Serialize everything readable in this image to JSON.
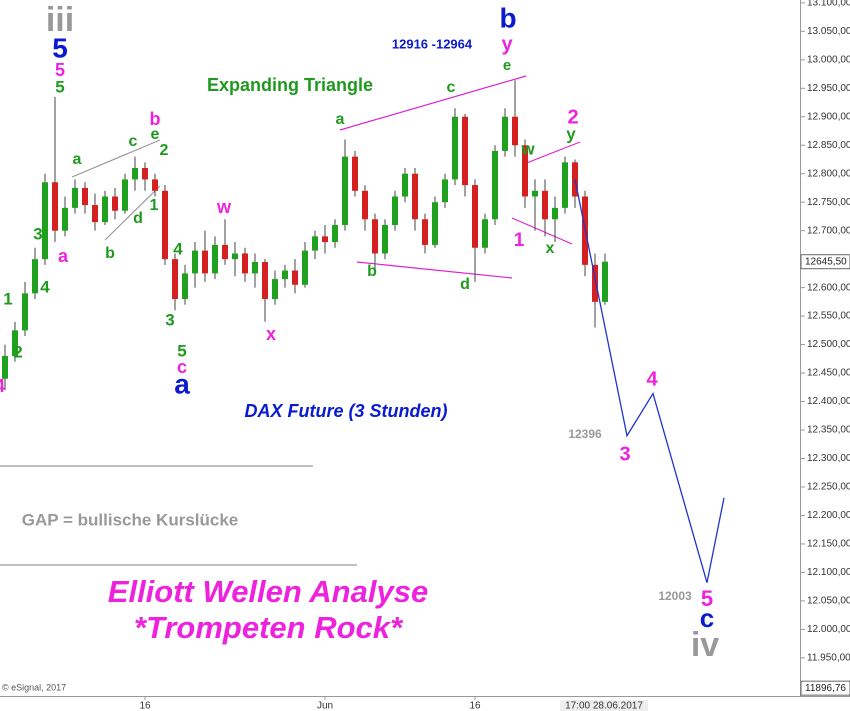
{
  "chart_data": {
    "type": "candlestick",
    "categories": [
      null,
      null,
      null,
      null,
      null,
      null,
      null,
      null,
      null,
      null,
      null,
      null,
      null,
      null,
      "16",
      null,
      null,
      null,
      null,
      null,
      null,
      null,
      null,
      null,
      null,
      null,
      null,
      null,
      null,
      null,
      null,
      null,
      "Jun",
      null,
      null,
      null,
      null,
      null,
      null,
      null,
      null,
      null,
      null,
      null,
      null,
      null,
      null,
      "16",
      null,
      null,
      null,
      null,
      null,
      null,
      null,
      null,
      null,
      null,
      null,
      null,
      null
    ],
    "open": [
      12440,
      12480,
      12525,
      12590,
      12650,
      12785,
      12700,
      12740,
      12775,
      12745,
      12715,
      12760,
      12735,
      12790,
      12810,
      12790,
      12770,
      12650,
      12580,
      12625,
      12665,
      12625,
      12675,
      12650,
      12660,
      12625,
      12645,
      12580,
      12615,
      12630,
      12605,
      12665,
      12690,
      12680,
      12710,
      12830,
      12770,
      12720,
      12660,
      12710,
      12760,
      12800,
      12720,
      12675,
      12750,
      12790,
      12900,
      12780,
      12670,
      12720,
      12840,
      12900,
      12850,
      12760,
      12770,
      12720,
      12740,
      12820,
      12760,
      12640,
      12575
    ],
    "high": [
      12500,
      12540,
      12610,
      12670,
      12800,
      12935,
      12760,
      12790,
      12785,
      12765,
      12770,
      12775,
      12800,
      12830,
      12820,
      12800,
      12780,
      12660,
      12640,
      12680,
      12700,
      12690,
      12720,
      12680,
      12670,
      12660,
      12650,
      12630,
      12640,
      12650,
      12680,
      12700,
      12710,
      12720,
      12860,
      12840,
      12780,
      12730,
      12720,
      12770,
      12810,
      12810,
      12730,
      12760,
      12800,
      12915,
      12905,
      12790,
      12730,
      12850,
      12915,
      12964,
      12860,
      12790,
      12790,
      12760,
      12830,
      12825,
      12770,
      12660,
      12660
    ],
    "low": [
      12420,
      12470,
      12515,
      12580,
      12640,
      12680,
      12690,
      12730,
      12730,
      12700,
      12710,
      12720,
      12730,
      12770,
      12770,
      12760,
      12640,
      12560,
      12570,
      12600,
      12610,
      12615,
      12640,
      12620,
      12610,
      12600,
      12540,
      12570,
      12600,
      12590,
      12600,
      12650,
      12660,
      12670,
      12700,
      12760,
      12700,
      12630,
      12650,
      12700,
      12750,
      12700,
      12660,
      12670,
      12740,
      12780,
      12760,
      12610,
      12660,
      12710,
      12830,
      12830,
      12740,
      12700,
      12690,
      12680,
      12730,
      12740,
      12620,
      12530,
      12570
    ],
    "close": [
      12480,
      12525,
      12590,
      12650,
      12785,
      12700,
      12740,
      12775,
      12745,
      12715,
      12760,
      12735,
      12790,
      12810,
      12790,
      12770,
      12650,
      12580,
      12625,
      12665,
      12625,
      12675,
      12650,
      12660,
      12625,
      12645,
      12580,
      12615,
      12630,
      12605,
      12665,
      12690,
      12680,
      12710,
      12830,
      12770,
      12720,
      12660,
      12710,
      12760,
      12800,
      12720,
      12675,
      12750,
      12790,
      12900,
      12780,
      12670,
      12720,
      12840,
      12900,
      12850,
      12760,
      12770,
      12720,
      12740,
      12820,
      12760,
      12640,
      12575,
      12645.5
    ],
    "up_color": "#1fa01f",
    "down_color": "#d42020",
    "projection": {
      "color": "#2233cc",
      "x": [
        57,
        62.2,
        64.8,
        70.2,
        71.9
      ],
      "values": [
        12790,
        12340,
        12414,
        12082,
        12231
      ]
    },
    "xlim": [
      -0.5,
      79.5
    ],
    "ylim": [
      11883,
      13105
    ],
    "yticks": [
      {
        "value": 11950,
        "label": "11.950,00"
      },
      {
        "value": 12000,
        "label": "12.000,00"
      },
      {
        "value": 12050,
        "label": "12.050,00"
      },
      {
        "value": 12100,
        "label": "12.100,00"
      },
      {
        "value": 12150,
        "label": "12.150,00"
      },
      {
        "value": 12200,
        "label": "12.200,00"
      },
      {
        "value": 12250,
        "label": "12.250,00"
      },
      {
        "value": 12300,
        "label": "12.300,00"
      },
      {
        "value": 12350,
        "label": "12.350,00"
      },
      {
        "value": 12400,
        "label": "12.400,00"
      },
      {
        "value": 12450,
        "label": "12.450,00"
      },
      {
        "value": 12500,
        "label": "12.500,00"
      },
      {
        "value": 12550,
        "label": "12.550,00"
      },
      {
        "value": 12600,
        "label": "12.600,00"
      },
      {
        "value": 12650,
        "label": "12.650,00"
      },
      {
        "value": 12700,
        "label": "12.700,00"
      },
      {
        "value": 12750,
        "label": "12.750,00"
      },
      {
        "value": 12800,
        "label": "12.800,00"
      },
      {
        "value": 12850,
        "label": "12.850,00"
      },
      {
        "value": 12900,
        "label": "12.900,00"
      },
      {
        "value": 12950,
        "label": "12.950,00"
      },
      {
        "value": 13000,
        "label": "13.000,00"
      },
      {
        "value": 13050,
        "label": "13.050,00"
      },
      {
        "value": 13100,
        "label": "13.100,00"
      }
    ],
    "last_price": {
      "value": 12645.5,
      "label": "12645,50"
    },
    "low_price": {
      "value": 11896.76,
      "label": "11896,76"
    },
    "cursor_label": "17:00 28.06.2017",
    "annotations": [
      "iii",
      "5",
      "5",
      "5",
      "a",
      "3",
      "4",
      "1",
      "2",
      "4",
      "a",
      "c",
      "e",
      "b",
      "2",
      "1",
      "d",
      "b",
      "4",
      "3",
      "5",
      "c",
      "a",
      "w",
      "x",
      "Expanding Triangle",
      "12916 -12964",
      "b",
      "y",
      "e",
      "a",
      "c",
      "b",
      "d",
      "w",
      "1",
      "x",
      "2",
      "y",
      "DAX Future (3 Stunden)",
      "12396",
      "4",
      "3",
      "GAP = bullische Kurslücke",
      "Elliott Wellen Analyse",
      "*Trompeten Rock*",
      "12003",
      "5",
      "c",
      "iv",
      "© eSignal, 2017"
    ]
  }
}
